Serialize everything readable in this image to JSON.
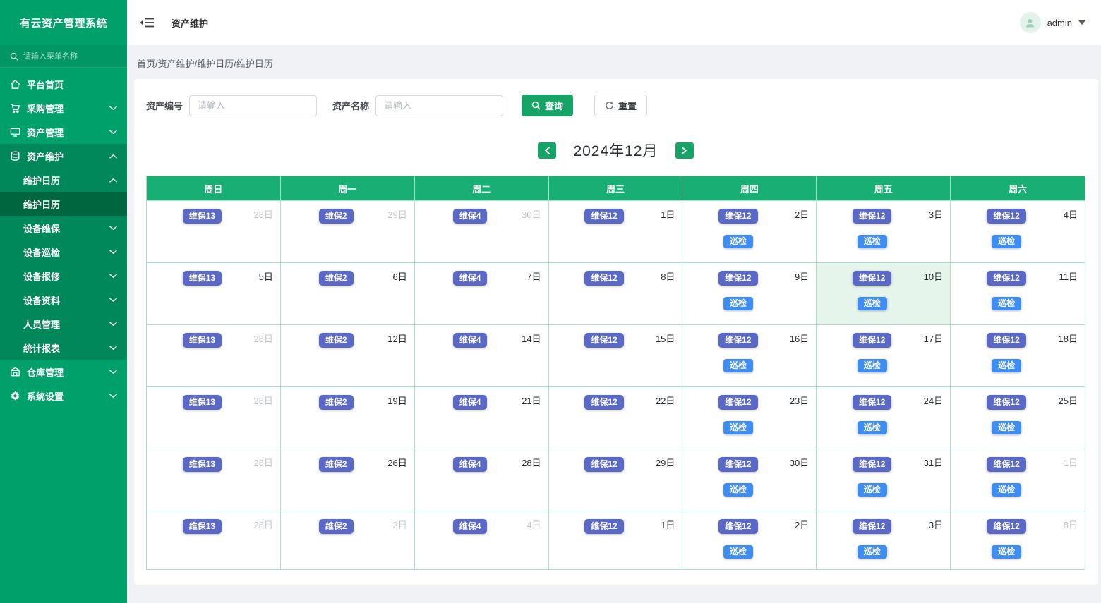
{
  "app": {
    "title": "有云资产管理系统"
  },
  "colors": {
    "accent_green": "#16A366",
    "sidebar_green": "#00A06B",
    "sidebar_submenu_green": "#00875A",
    "sidebar_active_green": "#00663F",
    "calendar_header_green": "#19AE74",
    "calendar_border_green": "#A8E0C6",
    "maintenance_badge": "#5A68C6",
    "inspection_badge": "#3D8DF5",
    "today_cell_bg": "#E6F5EC",
    "muted_day": "#C2C6CE"
  },
  "sidebar": {
    "search_placeholder": "请输入菜单名称",
    "search_icon": "search-icon",
    "items": [
      {
        "name": "sidebar-item-platform-home",
        "label": "平台首页",
        "icon": "home-icon",
        "level": 1
      },
      {
        "name": "sidebar-item-purchase-management",
        "label": "采购管理",
        "icon": "cart-icon",
        "level": 1,
        "chevron": "down"
      },
      {
        "name": "sidebar-item-asset-management",
        "label": "资产管理",
        "icon": "monitor-icon",
        "level": 1,
        "chevron": "down"
      },
      {
        "name": "sidebar-item-asset-maintenance",
        "label": "资产维护",
        "icon": "database-icon",
        "level": 1,
        "chevron": "up",
        "dark": true
      },
      {
        "name": "sidebar-item-maintenance-calendar-group",
        "label": "维护日历",
        "level": 2,
        "chevron": "up",
        "dark": true
      },
      {
        "name": "sidebar-item-maintenance-calendar",
        "label": "维护日历",
        "level": 3,
        "active": true,
        "dark": true
      },
      {
        "name": "sidebar-item-device-maintenance",
        "label": "设备维保",
        "level": 2,
        "chevron": "down",
        "dark": true
      },
      {
        "name": "sidebar-item-device-inspection",
        "label": "设备巡检",
        "level": 2,
        "chevron": "down",
        "dark": true
      },
      {
        "name": "sidebar-item-device-repair",
        "label": "设备报修",
        "level": 2,
        "chevron": "down",
        "dark": true
      },
      {
        "name": "sidebar-item-device-info",
        "label": "设备资料",
        "level": 2,
        "chevron": "down",
        "dark": true
      },
      {
        "name": "sidebar-item-personnel-management",
        "label": "人员管理",
        "level": 2,
        "chevron": "down",
        "dark": true
      },
      {
        "name": "sidebar-item-statistics-report",
        "label": "统计报表",
        "level": 2,
        "chevron": "down",
        "dark": true
      },
      {
        "name": "sidebar-item-warehouse-management",
        "label": "仓库管理",
        "icon": "warehouse-icon",
        "level": 1,
        "chevron": "down"
      },
      {
        "name": "sidebar-item-system-settings",
        "label": "系统设置",
        "icon": "gear-icon",
        "level": 1,
        "chevron": "down"
      }
    ]
  },
  "header": {
    "title": "资产维护",
    "user": "admin",
    "collapse_icon": "collapse-sidebar-icon",
    "user_icon": "user-icon",
    "caret_icon": "chevron-down-icon"
  },
  "breadcrumb": "首页/资产维护/维护日历/维护日历",
  "filters": {
    "asset_code_label": "资产编号",
    "asset_code_placeholder": "请输入",
    "asset_code_value": "",
    "asset_name_label": "资产名称",
    "asset_name_placeholder": "请输入",
    "asset_name_value": "",
    "search_label": "查询",
    "search_icon": "search-icon",
    "reset_label": "重置",
    "reset_icon": "refresh-icon"
  },
  "calendar": {
    "month_title": "2024年12月",
    "prev_icon": "chevron-left-icon",
    "next_icon": "chevron-right-icon",
    "weekdays": [
      "周日",
      "周一",
      "周二",
      "周三",
      "周四",
      "周五",
      "周六"
    ],
    "rows": [
      [
        {
          "d": "28日",
          "m": true,
          "b": [
            "维保13"
          ]
        },
        {
          "d": "29日",
          "m": true,
          "b": [
            "维保2"
          ]
        },
        {
          "d": "30日",
          "m": true,
          "b": [
            "维保4"
          ]
        },
        {
          "d": "1日",
          "m": false,
          "b": [
            "维保12"
          ]
        },
        {
          "d": "2日",
          "m": false,
          "b": [
            "维保12",
            "巡检"
          ]
        },
        {
          "d": "3日",
          "m": false,
          "b": [
            "维保12",
            "巡检"
          ]
        },
        {
          "d": "4日",
          "m": false,
          "b": [
            "维保12",
            "巡检"
          ]
        }
      ],
      [
        {
          "d": "5日",
          "m": false,
          "b": [
            "维保13"
          ]
        },
        {
          "d": "6日",
          "m": false,
          "b": [
            "维保2"
          ]
        },
        {
          "d": "7日",
          "m": false,
          "b": [
            "维保4"
          ]
        },
        {
          "d": "8日",
          "m": false,
          "b": [
            "维保12"
          ]
        },
        {
          "d": "9日",
          "m": false,
          "b": [
            "维保12",
            "巡检"
          ]
        },
        {
          "d": "10日",
          "m": false,
          "b": [
            "维保12",
            "巡检"
          ],
          "today": true
        },
        {
          "d": "11日",
          "m": false,
          "b": [
            "维保12",
            "巡检"
          ]
        }
      ],
      [
        {
          "d": "28日",
          "m": true,
          "b": [
            "维保13"
          ]
        },
        {
          "d": "12日",
          "m": false,
          "b": [
            "维保2"
          ]
        },
        {
          "d": "14日",
          "m": false,
          "b": [
            "维保4"
          ]
        },
        {
          "d": "15日",
          "m": false,
          "b": [
            "维保12"
          ]
        },
        {
          "d": "16日",
          "m": false,
          "b": [
            "维保12",
            "巡检"
          ]
        },
        {
          "d": "17日",
          "m": false,
          "b": [
            "维保12",
            "巡检"
          ]
        },
        {
          "d": "18日",
          "m": false,
          "b": [
            "维保12",
            "巡检"
          ]
        }
      ],
      [
        {
          "d": "28日",
          "m": true,
          "b": [
            "维保13"
          ]
        },
        {
          "d": "19日",
          "m": false,
          "b": [
            "维保2"
          ]
        },
        {
          "d": "21日",
          "m": false,
          "b": [
            "维保4"
          ]
        },
        {
          "d": "22日",
          "m": false,
          "b": [
            "维保12"
          ]
        },
        {
          "d": "23日",
          "m": false,
          "b": [
            "维保12",
            "巡检"
          ]
        },
        {
          "d": "24日",
          "m": false,
          "b": [
            "维保12",
            "巡检"
          ]
        },
        {
          "d": "25日",
          "m": false,
          "b": [
            "维保12",
            "巡检"
          ]
        }
      ],
      [
        {
          "d": "28日",
          "m": true,
          "b": [
            "维保13"
          ]
        },
        {
          "d": "26日",
          "m": false,
          "b": [
            "维保2"
          ]
        },
        {
          "d": "28日",
          "m": false,
          "b": [
            "维保4"
          ]
        },
        {
          "d": "29日",
          "m": false,
          "b": [
            "维保12"
          ]
        },
        {
          "d": "30日",
          "m": false,
          "b": [
            "维保12",
            "巡检"
          ]
        },
        {
          "d": "31日",
          "m": false,
          "b": [
            "维保12",
            "巡检"
          ]
        },
        {
          "d": "1日",
          "m": true,
          "b": [
            "维保12",
            "巡检"
          ]
        }
      ],
      [
        {
          "d": "28日",
          "m": true,
          "b": [
            "维保13"
          ]
        },
        {
          "d": "3日",
          "m": true,
          "b": [
            "维保2"
          ]
        },
        {
          "d": "4日",
          "m": true,
          "b": [
            "维保4"
          ]
        },
        {
          "d": "1日",
          "m": false,
          "b": [
            "维保12"
          ]
        },
        {
          "d": "2日",
          "m": false,
          "b": [
            "维保12",
            "巡检"
          ]
        },
        {
          "d": "3日",
          "m": false,
          "b": [
            "维保12",
            "巡检"
          ]
        },
        {
          "d": "8日",
          "m": true,
          "b": [
            "维保12",
            "巡检"
          ]
        }
      ]
    ]
  }
}
